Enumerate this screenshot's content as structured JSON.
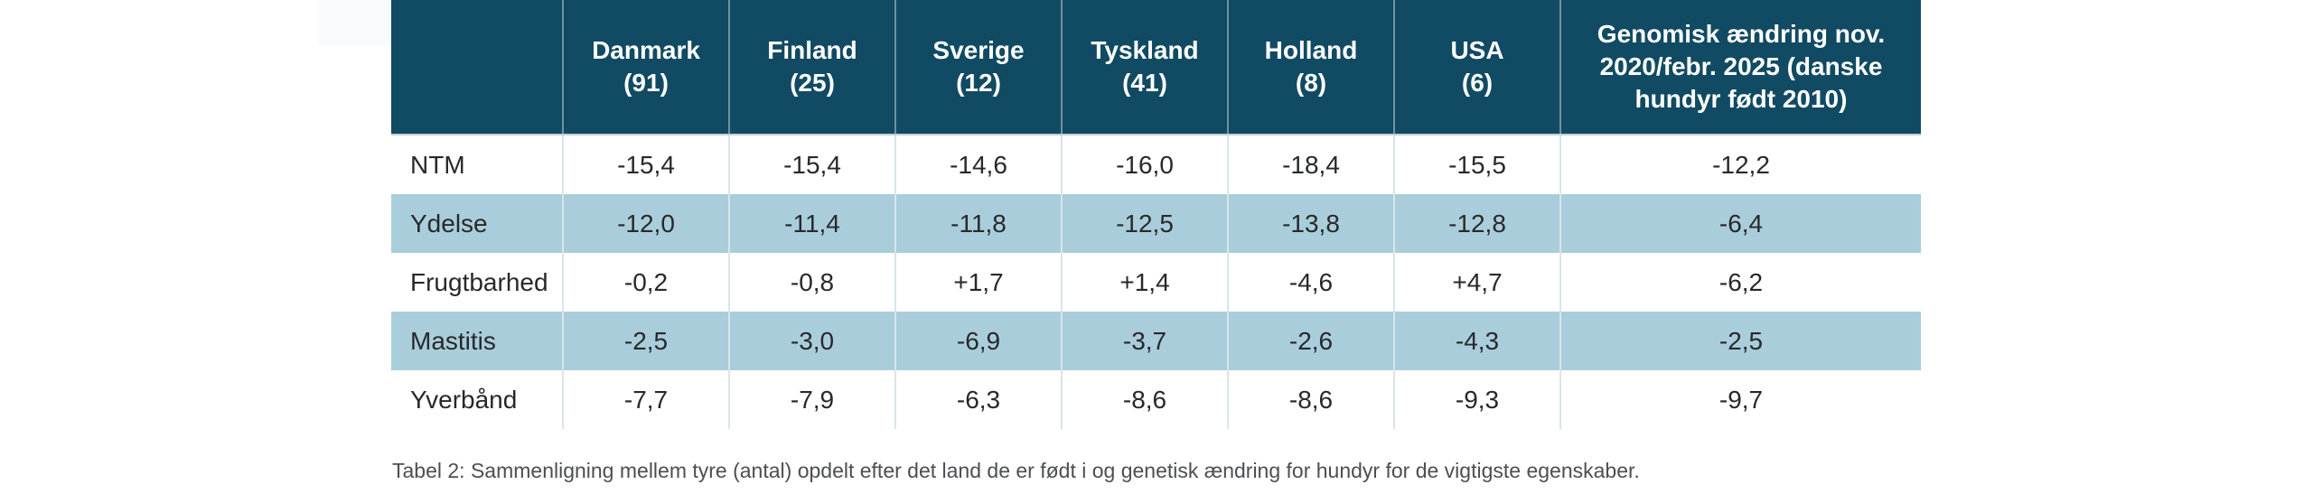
{
  "colors": {
    "header_bg": "#114a63",
    "header_text": "#ffffff",
    "stripe_bg": "#a9cddb",
    "row_bg": "#ffffff",
    "cell_text": "#28292b",
    "caption_text": "#4d4e50",
    "header_divider": "rgba(255,255,255,0.4)",
    "cell_divider": "#d9e5ea",
    "header_bottom_border": "#c5ced3"
  },
  "table": {
    "columns": [
      {
        "name": "Danmark",
        "count": "(91)"
      },
      {
        "name": "Finland",
        "count": "(25)"
      },
      {
        "name": "Sverige",
        "count": "(12)"
      },
      {
        "name": "Tyskland",
        "count": "(41)"
      },
      {
        "name": "Holland",
        "count": "(8)"
      },
      {
        "name": "USA",
        "count": "(6)"
      }
    ],
    "genomic_header": "Genomisk ændring nov.\n2020/febr. 2025 (danske\nhundyr født 2010)",
    "rows": [
      {
        "label": "NTM",
        "values": [
          "-15,4",
          "-15,4",
          "-14,6",
          "-16,0",
          "-18,4",
          "-15,5",
          "-12,2"
        ]
      },
      {
        "label": "Ydelse",
        "values": [
          "-12,0",
          "-11,4",
          "-11,8",
          "-12,5",
          "-13,8",
          "-12,8",
          "-6,4"
        ]
      },
      {
        "label": "Frugtbarhed",
        "values": [
          "-0,2",
          "-0,8",
          "+1,7",
          "+1,4",
          "-4,6",
          "+4,7",
          "-6,2"
        ]
      },
      {
        "label": "Mastitis",
        "values": [
          "-2,5",
          "-3,0",
          "-6,9",
          "-3,7",
          "-2,6",
          "-4,3",
          "-2,5"
        ]
      },
      {
        "label": "Yverbånd",
        "values": [
          "-7,7",
          "-7,9",
          "-6,3",
          "-8,6",
          "-8,6",
          "-9,3",
          "-9,7"
        ]
      }
    ]
  },
  "caption": "Tabel 2: Sammenligning mellem tyre (antal) opdelt efter det land de er født i og genetisk ændring for hundyr for de vigtigste egenskaber.",
  "chart_data": {
    "type": "table",
    "columns": [
      "",
      "Danmark (91)",
      "Finland (25)",
      "Sverige (12)",
      "Tyskland (41)",
      "Holland (8)",
      "USA (6)",
      "Genomisk ændring nov. 2020/febr. 2025 (danske hundyr født 2010)"
    ],
    "rows": [
      [
        "NTM",
        -15.4,
        -15.4,
        -14.6,
        -16.0,
        -18.4,
        -15.5,
        -12.2
      ],
      [
        "Ydelse",
        -12.0,
        -11.4,
        -11.8,
        -12.5,
        -13.8,
        -12.8,
        -6.4
      ],
      [
        "Frugtbarhed",
        -0.2,
        -0.8,
        1.7,
        1.4,
        -4.6,
        4.7,
        -6.2
      ],
      [
        "Mastitis",
        -2.5,
        -3.0,
        -6.9,
        -3.7,
        -2.6,
        -4.3,
        -2.5
      ],
      [
        "Yverbånd",
        -7.7,
        -7.9,
        -6.3,
        -8.6,
        -8.6,
        -9.3,
        -9.7
      ],
      [
        "caption",
        "Tabel 2: Sammenligning mellem tyre (antal) opdelt efter det land de er født i og genetisk ændring for hundyr for de vigtigste egenskaber."
      ]
    ],
    "layout": {
      "striped_rows": [
        "Ydelse",
        "Mastitis"
      ],
      "decimal_separator": ",",
      "positive_values_prefixed_with_plus": true
    }
  }
}
